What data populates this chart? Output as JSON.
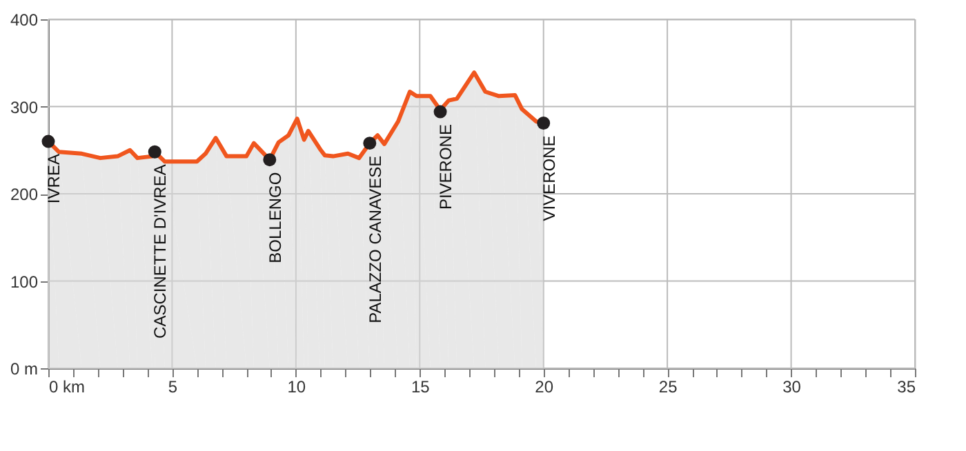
{
  "chart_data": {
    "type": "area",
    "series": [
      {
        "color": "#f0561e",
        "x": [
          0,
          0.43,
          1.35,
          2.1,
          2.8,
          3.3,
          3.6,
          4.2,
          4.3,
          4.7,
          6.0,
          6.35,
          6.76,
          7.2,
          8.0,
          8.3,
          8.94,
          9.3,
          9.7,
          10.05,
          10.33,
          10.5,
          10.98,
          11.17,
          11.5,
          12.1,
          12.55,
          12.98,
          13.3,
          13.57,
          14.13,
          14.6,
          14.87,
          15.43,
          15.83,
          16.17,
          16.5,
          17.2,
          17.65,
          18.2,
          18.85,
          19.13,
          19.7,
          20.0
        ],
        "values": [
          260,
          248,
          246,
          241,
          243,
          250,
          241,
          243,
          248,
          237,
          237,
          246,
          264,
          243,
          243,
          258,
          239,
          259,
          267,
          286,
          262,
          272,
          251,
          244,
          243,
          246,
          241,
          258,
          267,
          257,
          283,
          317,
          312,
          312,
          296,
          307,
          309,
          339,
          317,
          312,
          313,
          297,
          283,
          281
        ]
      },
      {
        "type": "scatter",
        "color": "#231f20",
        "marker": "circle",
        "x": [
          0,
          4.3,
          8.94,
          12.98,
          15.83,
          20.0
        ],
        "values": [
          260,
          248,
          239,
          258,
          294,
          281
        ]
      }
    ],
    "annotations": [
      {
        "text": "IVREA",
        "x": 0,
        "y": 260
      },
      {
        "text": "CASCINETTE D'IVREA",
        "x": 4.3,
        "y": 248
      },
      {
        "text": "BOLLENGO",
        "x": 8.94,
        "y": 239
      },
      {
        "text": "PALAZZO CANAVESE",
        "x": 12.98,
        "y": 258
      },
      {
        "text": "PIVERONE",
        "x": 15.83,
        "y": 294
      },
      {
        "text": "VIVERONE",
        "x": 20.0,
        "y": 281
      }
    ],
    "xlim": [
      0,
      35
    ],
    "xticks": [
      {
        "value": 0,
        "label": "0 km"
      },
      {
        "value": 1,
        "label": null
      },
      {
        "value": 2,
        "label": null
      },
      {
        "value": 3,
        "label": null
      },
      {
        "value": 4,
        "label": null
      },
      5,
      {
        "value": 6,
        "label": null
      },
      {
        "value": 7,
        "label": null
      },
      {
        "value": 8,
        "label": null
      },
      {
        "value": 9,
        "label": null
      },
      10,
      {
        "value": 11,
        "label": null
      },
      {
        "value": 12,
        "label": null
      },
      {
        "value": 13,
        "label": null
      },
      {
        "value": 14,
        "label": null
      },
      15,
      {
        "value": 16,
        "label": null
      },
      {
        "value": 17,
        "label": null
      },
      {
        "value": 18,
        "label": null
      },
      {
        "value": 19,
        "label": null
      },
      20,
      {
        "value": 21,
        "label": null
      },
      {
        "value": 22,
        "label": null
      },
      {
        "value": 23,
        "label": null
      },
      {
        "value": 24,
        "label": null
      },
      25,
      {
        "value": 26,
        "label": null
      },
      {
        "value": 27,
        "label": null
      },
      {
        "value": 28,
        "label": null
      },
      {
        "value": 29,
        "label": null
      },
      30,
      {
        "value": 31,
        "label": null
      },
      {
        "value": 32,
        "label": null
      },
      {
        "value": 33,
        "label": null
      },
      {
        "value": 34,
        "label": null
      },
      35
    ],
    "ylim": [
      0,
      400
    ],
    "yticks": [
      {
        "value": 0,
        "label": "0 m"
      },
      100,
      200,
      300,
      400
    ],
    "grid": true
  }
}
